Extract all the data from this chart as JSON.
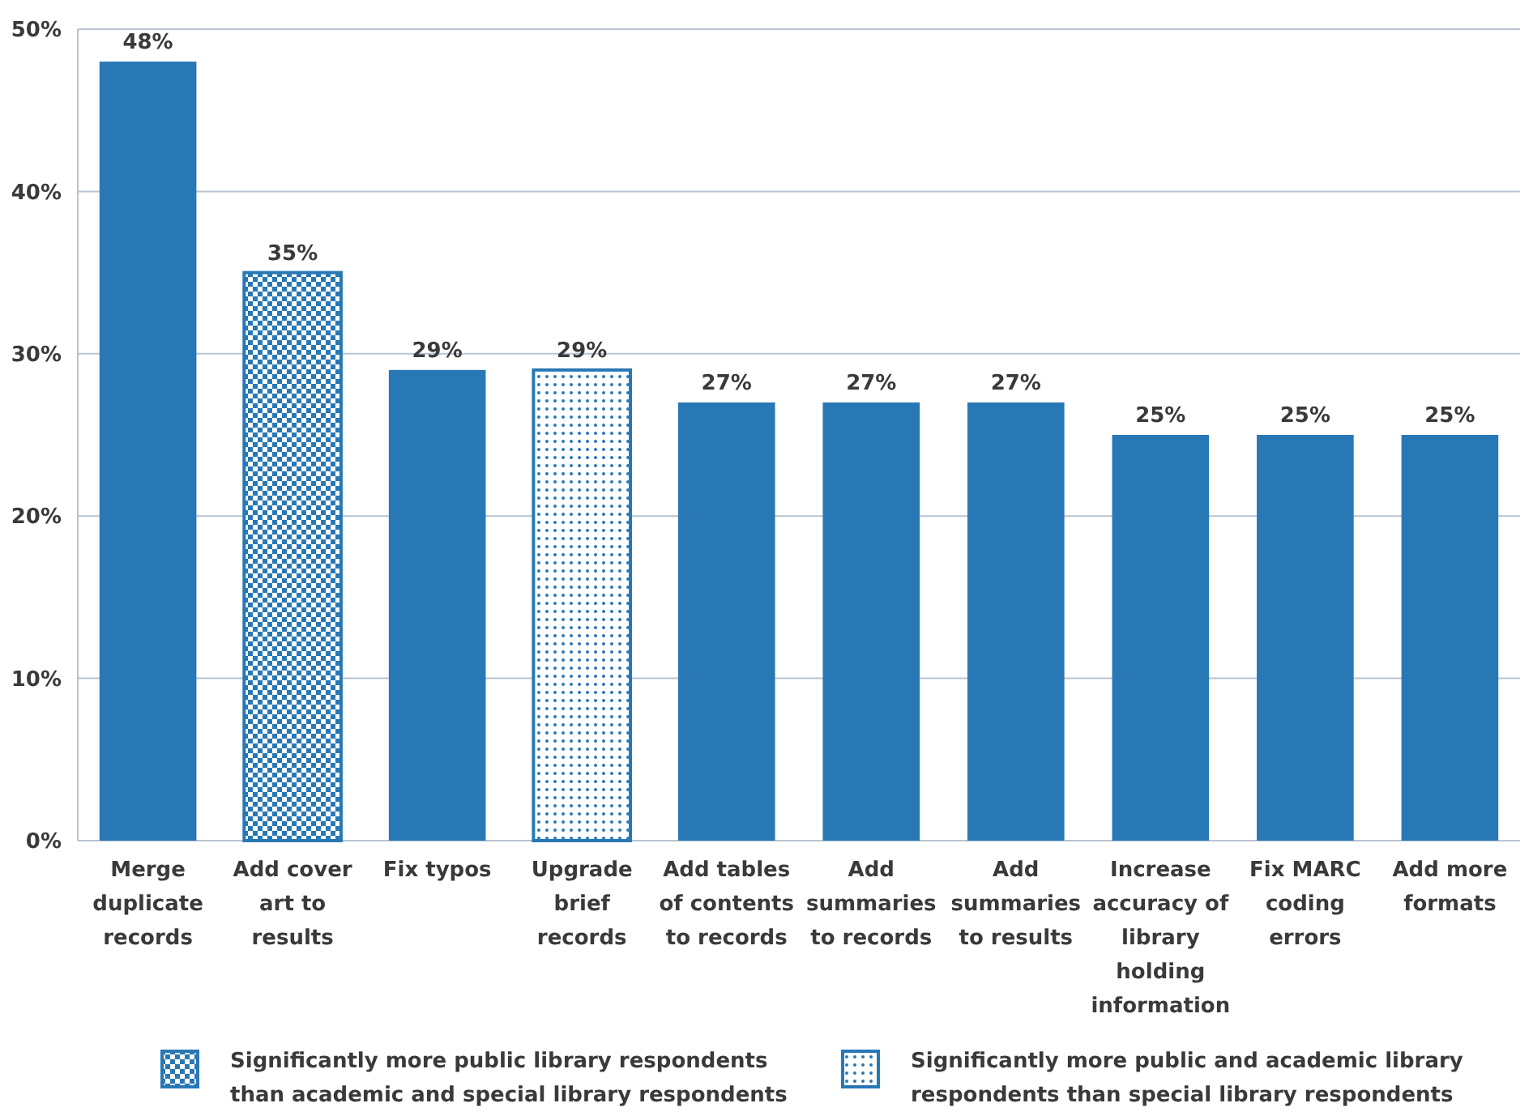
{
  "chart_data": {
    "type": "bar",
    "categories": [
      "Merge duplicate records",
      "Add cover art to results",
      "Fix typos",
      "Upgrade brief records",
      "Add tables of contents to records",
      "Add summaries to records",
      "Add summaries to results",
      "Increase accuracy of library holding information",
      "Fix MARC coding errors",
      "Add more formats"
    ],
    "series": [
      {
        "color": "#2878b5",
        "values": [
          48,
          null,
          29,
          null,
          27,
          27,
          27,
          25,
          25,
          25
        ],
        "value_labels": [
          "48%",
          null,
          "29%",
          null,
          "27%",
          "27%",
          "27%",
          "25%",
          "25%",
          "25%"
        ]
      },
      {
        "name": "Significantly more public library respondents than academic and special library respondents",
        "color": "#2878b5",
        "values": [
          null,
          35,
          null,
          null,
          null,
          null,
          null,
          null,
          null,
          null
        ],
        "value_labels": [
          null,
          "35%",
          null,
          null,
          null,
          null,
          null,
          null,
          null,
          null
        ]
      },
      {
        "name": "Significantly more public and academic library respondents than special library respondents",
        "color": "#2878b5",
        "values": [
          null,
          null,
          null,
          29,
          null,
          null,
          null,
          null,
          null,
          null
        ],
        "value_labels": [
          null,
          null,
          null,
          "29%",
          null,
          null,
          null,
          null,
          null,
          null
        ]
      }
    ],
    "ylim": [
      0,
      50
    ],
    "yticks": [
      {
        "value": 0,
        "label": "0%"
      },
      {
        "value": 10,
        "label": "10%"
      },
      {
        "value": 20,
        "label": "20%"
      },
      {
        "value": 30,
        "label": "30%"
      },
      {
        "value": 40,
        "label": "40%"
      },
      {
        "value": 50,
        "label": "50%"
      }
    ],
    "grid": "y",
    "legend": "bottom"
  }
}
